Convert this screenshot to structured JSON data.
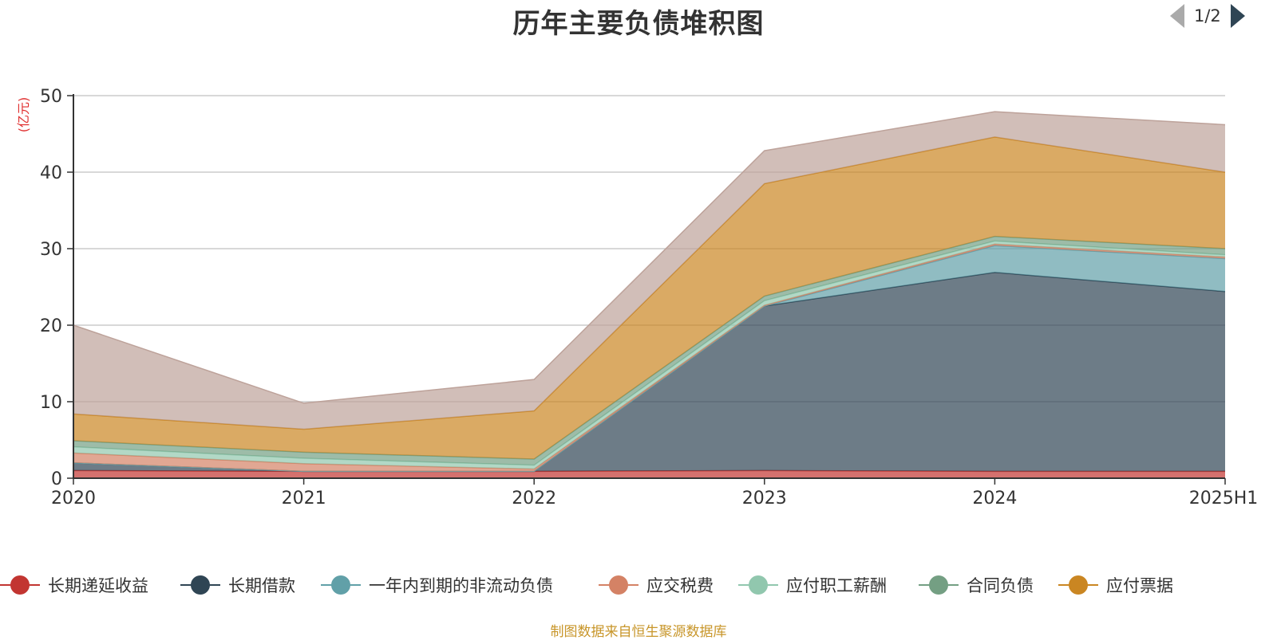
{
  "chart_data": {
    "type": "area",
    "stacked": true,
    "title": "历年主要负债堆积图",
    "unit": "(亿元)",
    "categories": [
      "2020",
      "2021",
      "2022",
      "2023",
      "2024",
      "2025H1"
    ],
    "ylim": [
      0,
      50
    ],
    "yticks": [
      0,
      10,
      20,
      30,
      40,
      50
    ],
    "grid": true,
    "legend_position": "bottom",
    "series": [
      {
        "name": "长期递延收益",
        "color": "#c23531",
        "values": [
          1.0,
          0.9,
          0.9,
          1.0,
          0.9,
          0.9
        ]
      },
      {
        "name": "长期借款",
        "color": "#2f4554",
        "values": [
          1.0,
          0.0,
          0.0,
          21.5,
          26.0,
          23.5
        ]
      },
      {
        "name": "一年内到期的非流动负债",
        "color": "#61a0a8",
        "values": [
          0.0,
          0.0,
          0.0,
          0.0,
          3.5,
          4.3
        ]
      },
      {
        "name": "应交税费",
        "color": "#d48265",
        "values": [
          1.3,
          1.0,
          0.3,
          0.1,
          0.2,
          0.2
        ]
      },
      {
        "name": "应付职工薪酬",
        "color": "#91c7ae",
        "values": [
          0.8,
          0.7,
          0.5,
          0.6,
          0.4,
          0.3
        ]
      },
      {
        "name": "合同负债",
        "color": "#749f83",
        "values": [
          0.8,
          0.8,
          0.8,
          0.6,
          0.6,
          0.8
        ]
      },
      {
        "name": "应付票据",
        "color": "#ca8622",
        "values": [
          3.5,
          3.0,
          6.3,
          14.7,
          13.0,
          10.0
        ]
      },
      {
        "name": "",
        "color": "#bda29a",
        "values": [
          11.6,
          3.4,
          4.1,
          4.3,
          3.3,
          6.2
        ]
      }
    ],
    "source_note": "制图数据来自恒生聚源数据库"
  },
  "legend": {
    "pager": "1/2"
  }
}
